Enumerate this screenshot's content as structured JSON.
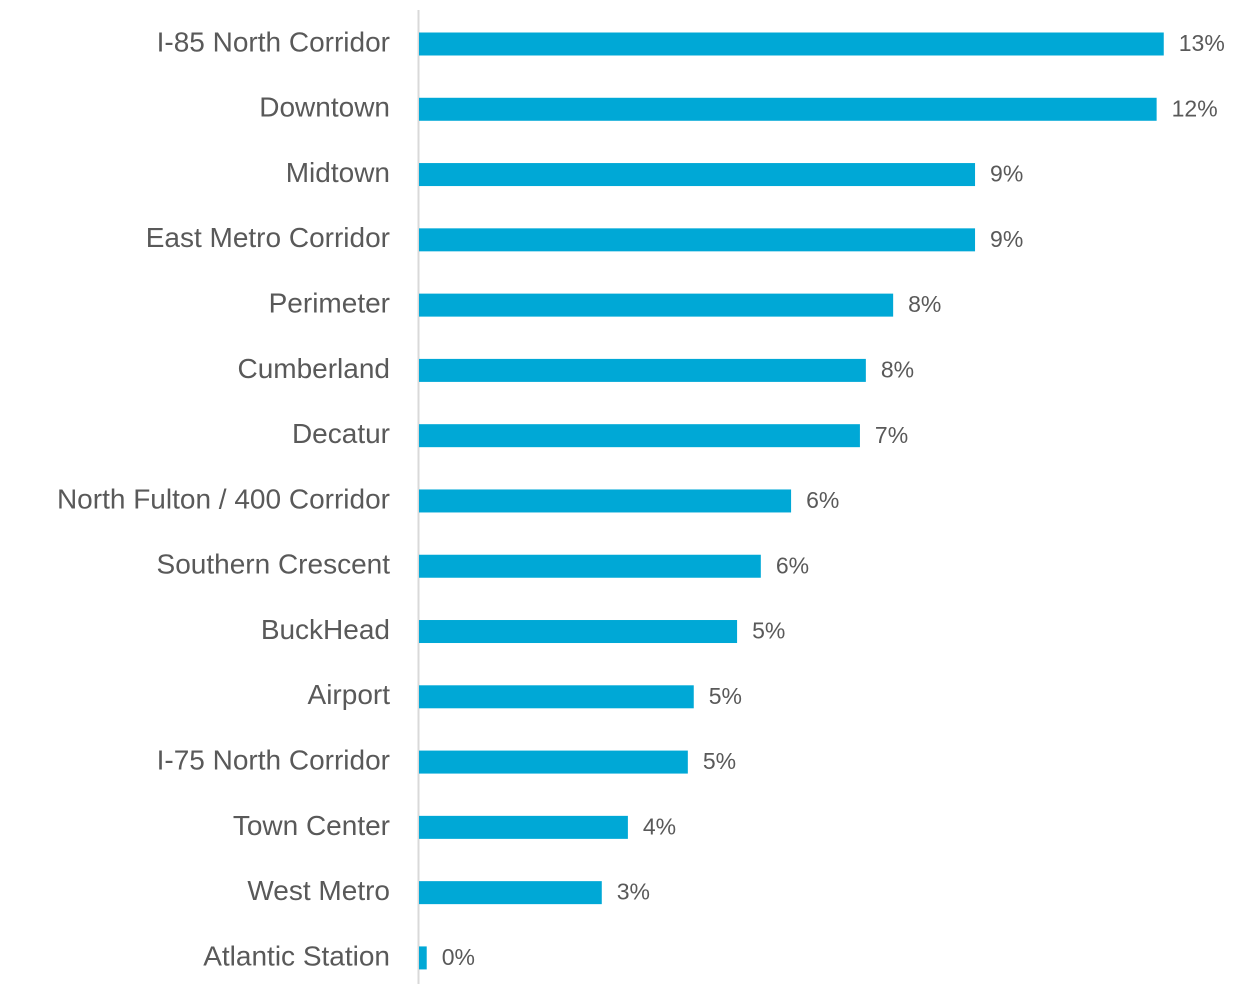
{
  "chart_data": {
    "type": "barh",
    "categories": [
      "I-85 North Corridor",
      "Downtown",
      "Midtown",
      "East Metro Corridor",
      "Perimeter",
      "Cumberland",
      "Decatur",
      "North Fulton / 400 Corridor",
      "Southern Crescent",
      "BuckHead",
      "Airport",
      "I-75 North Corridor",
      "Town Center",
      "West Metro",
      "Atlantic Station"
    ],
    "values": [
      12.55,
      12.43,
      9.37,
      9.37,
      7.99,
      7.53,
      7.43,
      6.27,
      5.76,
      5.36,
      4.63,
      4.53,
      3.52,
      3.08,
      0.13
    ],
    "value_labels": [
      "13%",
      "12%",
      "9%",
      "9%",
      "8%",
      "8%",
      "7%",
      "6%",
      "6%",
      "5%",
      "5%",
      "5%",
      "4%",
      "3%",
      "0%"
    ],
    "color": "#00a8d6",
    "xlim": [
      0,
      13.7
    ]
  }
}
